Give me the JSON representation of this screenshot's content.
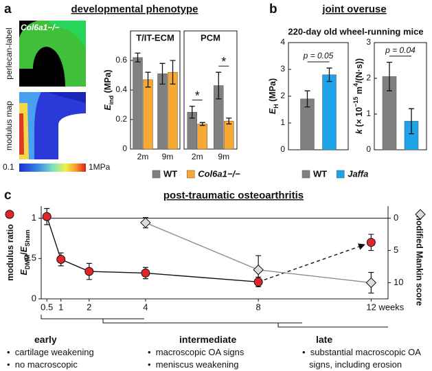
{
  "panels": [
    {
      "label": "a",
      "title": "developmental phenotype",
      "image_labels": [
        "perlecan-label",
        "modulus map"
      ],
      "genotype": "Col6a1−/−",
      "colorbar": [
        "0.1",
        "1MPa"
      ]
    },
    {
      "label": "b",
      "title": "joint overuse",
      "subtitle": "220-day old wheel-running mice"
    },
    {
      "label": "c",
      "title": "post-traumatic osteoarthritis"
    }
  ],
  "chart_data": [
    {
      "type": "bar",
      "title": "T/IT-ECM",
      "categories": [
        "2m",
        "9m"
      ],
      "y_label": [
        [
          {
            "text": "E",
            "style": "italic"
          },
          {
            "text": "ind",
            "shift": "sub"
          },
          {
            "text": " (MPa)"
          }
        ]
      ],
      "series": [
        {
          "name": "WT",
          "color": "#808080",
          "values": [
            0.62,
            0.51
          ],
          "errors": [
            0.03,
            0.07
          ]
        },
        {
          "name": "Col6a1−/−",
          "color": "#f7a934",
          "values": [
            0.47,
            0.52
          ],
          "errors": [
            0.05,
            0.08
          ]
        }
      ],
      "ylim": [
        0,
        0.8
      ],
      "yticks": [
        0,
        0.2,
        0.4,
        0.6
      ]
    },
    {
      "type": "bar",
      "title": "PCM",
      "categories": [
        "2m",
        "9m"
      ],
      "series": [
        {
          "color": "#808080",
          "values": [
            0.25,
            0.43
          ],
          "errors": [
            0.04,
            0.09
          ]
        },
        {
          "color": "#f7a934",
          "values": [
            0.17,
            0.19
          ],
          "errors": [
            0.01,
            0.02
          ]
        }
      ],
      "significance": [
        "*",
        "*"
      ],
      "ylim": [
        0,
        0.8
      ]
    },
    {
      "type": "bar",
      "categories": [
        null
      ],
      "y_label": [
        [
          {
            "text": "E",
            "style": "italic"
          },
          {
            "text": "H",
            "shift": "sub"
          },
          {
            "text": " (MPa)"
          }
        ]
      ],
      "series": [
        {
          "name": "WT",
          "color": "#808080",
          "values": [
            1.9
          ],
          "errors": [
            0.3
          ]
        },
        {
          "name": "Jaffa",
          "color": "#1ea3e8",
          "values": [
            2.8
          ],
          "errors": [
            0.25
          ]
        }
      ],
      "significance": [
        "p = 0.05"
      ],
      "ylim": [
        0,
        4
      ],
      "yticks": [
        0,
        1,
        2,
        3,
        4
      ]
    },
    {
      "type": "bar",
      "categories": [
        null
      ],
      "y_label": [
        [
          {
            "text": "k",
            "style": "italic"
          },
          {
            "text": " (× 10"
          },
          {
            "text": "−15",
            "shift": "super"
          },
          {
            "text": " m"
          },
          {
            "text": "4",
            "shift": "super"
          },
          {
            "text": "/(N·s))"
          }
        ]
      ],
      "series": [
        {
          "color": "#808080",
          "values": [
            2.05
          ],
          "errors": [
            0.4
          ]
        },
        {
          "color": "#1ea3e8",
          "values": [
            0.8
          ],
          "errors": [
            0.35
          ]
        }
      ],
      "significance": [
        "p = 0.04"
      ],
      "ylim": [
        0,
        3
      ],
      "yticks": [
        0,
        1,
        2,
        3
      ]
    },
    {
      "type": "line",
      "y_label": [
        [
          {
            "text": "modulus ratio"
          }
        ],
        [
          {
            "text": "E",
            "style": "italic"
          },
          {
            "text": "DMM",
            "shift": "sub"
          },
          {
            "text": "/"
          },
          {
            "text": "E",
            "style": "italic"
          },
          {
            "text": "Sham",
            "shift": "sub"
          }
        ]
      ],
      "y2_label": "modified Mankin score",
      "xlim": [
        0.3,
        12.6
      ],
      "xticks": [
        0.5,
        1,
        2,
        4,
        8,
        {
          "value": 12,
          "label": "12 weeks"
        }
      ],
      "ylim": [
        0,
        1.15
      ],
      "yticks": [
        0,
        0.5,
        1
      ],
      "hline": 1,
      "y2lim": [
        12.5,
        -1.875
      ],
      "y2ticks": [
        0,
        5,
        10
      ],
      "series": [
        {
          "color": "#e0262a",
          "marker": "circle",
          "x": [
            0.5,
            1,
            2,
            4,
            8
          ],
          "values": [
            1.02,
            0.49,
            0.34,
            0.32,
            0.21
          ],
          "errors": [
            0.1,
            0.08,
            0.1,
            0.07,
            0.06
          ]
        },
        {
          "color": "#e0262a",
          "marker": "circle",
          "line": "none",
          "connector": "dashed-arrow",
          "x": [
            12
          ],
          "values": [
            0.7
          ],
          "errors": [
            0.1
          ]
        },
        {
          "color": "#8c8c8c",
          "marker": "diamond",
          "axis": "y2",
          "x": [
            4,
            8,
            12
          ],
          "values": [
            0.7,
            8,
            10
          ],
          "errors": [
            0.8,
            2.2,
            1.6
          ]
        }
      ]
    }
  ],
  "timeline": [
    {
      "stage": "early",
      "notes": [
        "cartilage weakening",
        "no macroscopic changes"
      ]
    },
    {
      "stage": "intermediate",
      "notes": [
        "macroscopic OA signs",
        "meniscus weakening"
      ]
    },
    {
      "stage": "late",
      "notes": [
        "substantial macroscopic OA signs, including erosion"
      ]
    }
  ]
}
